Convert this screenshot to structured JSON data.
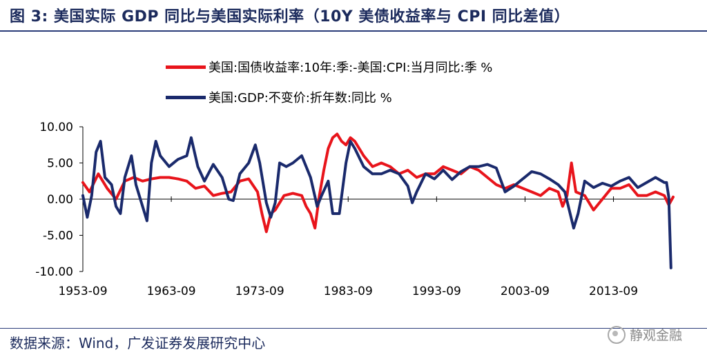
{
  "header": {
    "title": "图 3:  美国实际 GDP 同比与美国实际利率（10Y 美债收益率与 CPI 同比差值）"
  },
  "footer": {
    "source": "数据来源：Wind，广发证券发展研究中心",
    "watermark": "静观金融"
  },
  "colors": {
    "real_rate": "#e8141b",
    "gdp": "#1a2a6c",
    "title": "#1b2a5c"
  },
  "chart_data": {
    "type": "line",
    "title": "美国实际 GDP 同比与美国实际利率（10Y 美债收益率与 CPI 同比差值）",
    "xlabel": "",
    "ylabel": "",
    "ylim": [
      -10,
      10
    ],
    "yticks": [
      "10.00",
      "5.00",
      "0.00",
      "-5.00",
      "-10.00"
    ],
    "ytick_values": [
      10,
      5,
      0,
      -5,
      -10
    ],
    "xticks": [
      "1953-09",
      "1963-09",
      "1973-09",
      "1983-09",
      "1993-09",
      "2003-09",
      "2013-09"
    ],
    "xtick_values": [
      1953.75,
      1963.75,
      1973.75,
      1983.75,
      1993.75,
      2003.75,
      2013.75
    ],
    "xlim": [
      1953.75,
      2020.5
    ],
    "series": [
      {
        "name": "美国:国债收益率:10年:季:-美国:CPI:当月同比:季 %",
        "color": "#e8141b",
        "x": [
          1953.75,
          1954.5,
          1955.5,
          1956.5,
          1957.5,
          1958.5,
          1959.5,
          1960.5,
          1961.5,
          1962.5,
          1963.5,
          1964.5,
          1965.5,
          1966.5,
          1967.5,
          1968.5,
          1969.5,
          1970.5,
          1971.5,
          1972.5,
          1973.5,
          1974.0,
          1974.5,
          1975.0,
          1975.5,
          1976.5,
          1977.5,
          1978.5,
          1979.0,
          1979.5,
          1980.0,
          1980.5,
          1981.0,
          1981.5,
          1982.0,
          1982.5,
          1983.0,
          1983.5,
          1984.0,
          1984.5,
          1985.5,
          1986.5,
          1987.5,
          1988.5,
          1989.5,
          1990.5,
          1991.5,
          1992.5,
          1993.5,
          1994.5,
          1995.5,
          1996.5,
          1997.5,
          1998.5,
          1999.5,
          2000.5,
          2001.5,
          2002.5,
          2003.5,
          2004.5,
          2005.5,
          2006.5,
          2007.5,
          2008.0,
          2008.5,
          2009.0,
          2009.5,
          2010.5,
          2011.5,
          2012.5,
          2013.5,
          2014.5,
          2015.5,
          2016.5,
          2017.5,
          2018.5,
          2019.5,
          2020.0,
          2020.5
        ],
        "values": [
          2.3,
          1.0,
          3.5,
          1.5,
          0.0,
          2.5,
          3.0,
          2.5,
          2.8,
          3.0,
          3.0,
          2.8,
          2.5,
          1.5,
          1.8,
          0.5,
          0.8,
          1.0,
          2.5,
          2.8,
          1.0,
          -2.0,
          -4.5,
          -2.0,
          -1.5,
          0.5,
          0.8,
          0.5,
          -1.0,
          -2.0,
          -4.0,
          0.5,
          4.0,
          7.0,
          8.5,
          9.0,
          8.0,
          7.5,
          8.5,
          8.0,
          6.0,
          4.5,
          5.0,
          4.5,
          3.5,
          4.0,
          3.0,
          3.5,
          3.5,
          4.5,
          4.0,
          3.5,
          4.5,
          4.0,
          3.0,
          2.0,
          1.5,
          2.0,
          1.5,
          1.0,
          0.5,
          1.5,
          1.0,
          -1.0,
          0.5,
          5.0,
          1.0,
          0.5,
          -1.5,
          0.0,
          1.5,
          1.5,
          2.0,
          0.5,
          0.5,
          1.0,
          0.5,
          -0.8,
          0.3
        ]
      },
      {
        "name": "美国:GDP:不变价:折年数:同比 %",
        "color": "#1a2a6c",
        "x": [
          1953.75,
          1954.25,
          1954.75,
          1955.25,
          1955.75,
          1956.25,
          1957.0,
          1957.5,
          1958.0,
          1958.5,
          1959.25,
          1959.75,
          1960.5,
          1961.0,
          1961.5,
          1962.0,
          1962.5,
          1963.5,
          1964.5,
          1965.5,
          1966.0,
          1966.75,
          1967.5,
          1968.5,
          1969.5,
          1970.25,
          1970.75,
          1971.5,
          1972.5,
          1973.25,
          1973.75,
          1974.5,
          1975.0,
          1975.5,
          1976.0,
          1976.75,
          1977.5,
          1978.5,
          1979.5,
          1980.25,
          1980.75,
          1981.5,
          1982.0,
          1982.75,
          1983.5,
          1984.0,
          1984.5,
          1985.5,
          1986.5,
          1987.5,
          1988.5,
          1989.5,
          1990.5,
          1991.0,
          1991.5,
          1992.5,
          1993.5,
          1994.5,
          1995.5,
          1996.5,
          1997.5,
          1998.5,
          1999.5,
          2000.5,
          2001.5,
          2002.5,
          2003.5,
          2004.5,
          2005.5,
          2006.5,
          2007.5,
          2008.25,
          2008.75,
          2009.25,
          2009.75,
          2010.5,
          2011.5,
          2012.5,
          2013.5,
          2014.5,
          2015.5,
          2016.5,
          2017.5,
          2018.5,
          2019.5,
          2019.75,
          2020.0,
          2020.25
        ],
        "values": [
          0.5,
          -2.5,
          0.5,
          6.5,
          8.0,
          3.0,
          2.0,
          -1.0,
          -2.0,
          3.0,
          6.0,
          2.0,
          -1.0,
          -3.0,
          5.0,
          8.0,
          6.0,
          4.5,
          5.5,
          6.0,
          8.5,
          4.5,
          2.5,
          4.8,
          3.0,
          0.0,
          -0.2,
          3.5,
          5.0,
          7.5,
          5.0,
          -0.5,
          -2.5,
          -0.5,
          5.0,
          4.5,
          5.0,
          6.0,
          3.0,
          -1.0,
          0.5,
          2.5,
          -2.0,
          -2.0,
          5.0,
          8.0,
          7.0,
          4.5,
          3.5,
          3.5,
          4.0,
          3.5,
          1.8,
          -0.5,
          1.0,
          3.5,
          2.8,
          4.0,
          2.7,
          3.8,
          4.5,
          4.5,
          4.8,
          4.3,
          1.0,
          1.8,
          2.8,
          3.8,
          3.5,
          2.8,
          2.0,
          1.0,
          -1.5,
          -4.0,
          -2.0,
          2.5,
          1.6,
          2.2,
          1.8,
          2.5,
          3.0,
          1.6,
          2.3,
          3.0,
          2.3,
          2.3,
          0.3,
          -9.5
        ]
      }
    ]
  }
}
